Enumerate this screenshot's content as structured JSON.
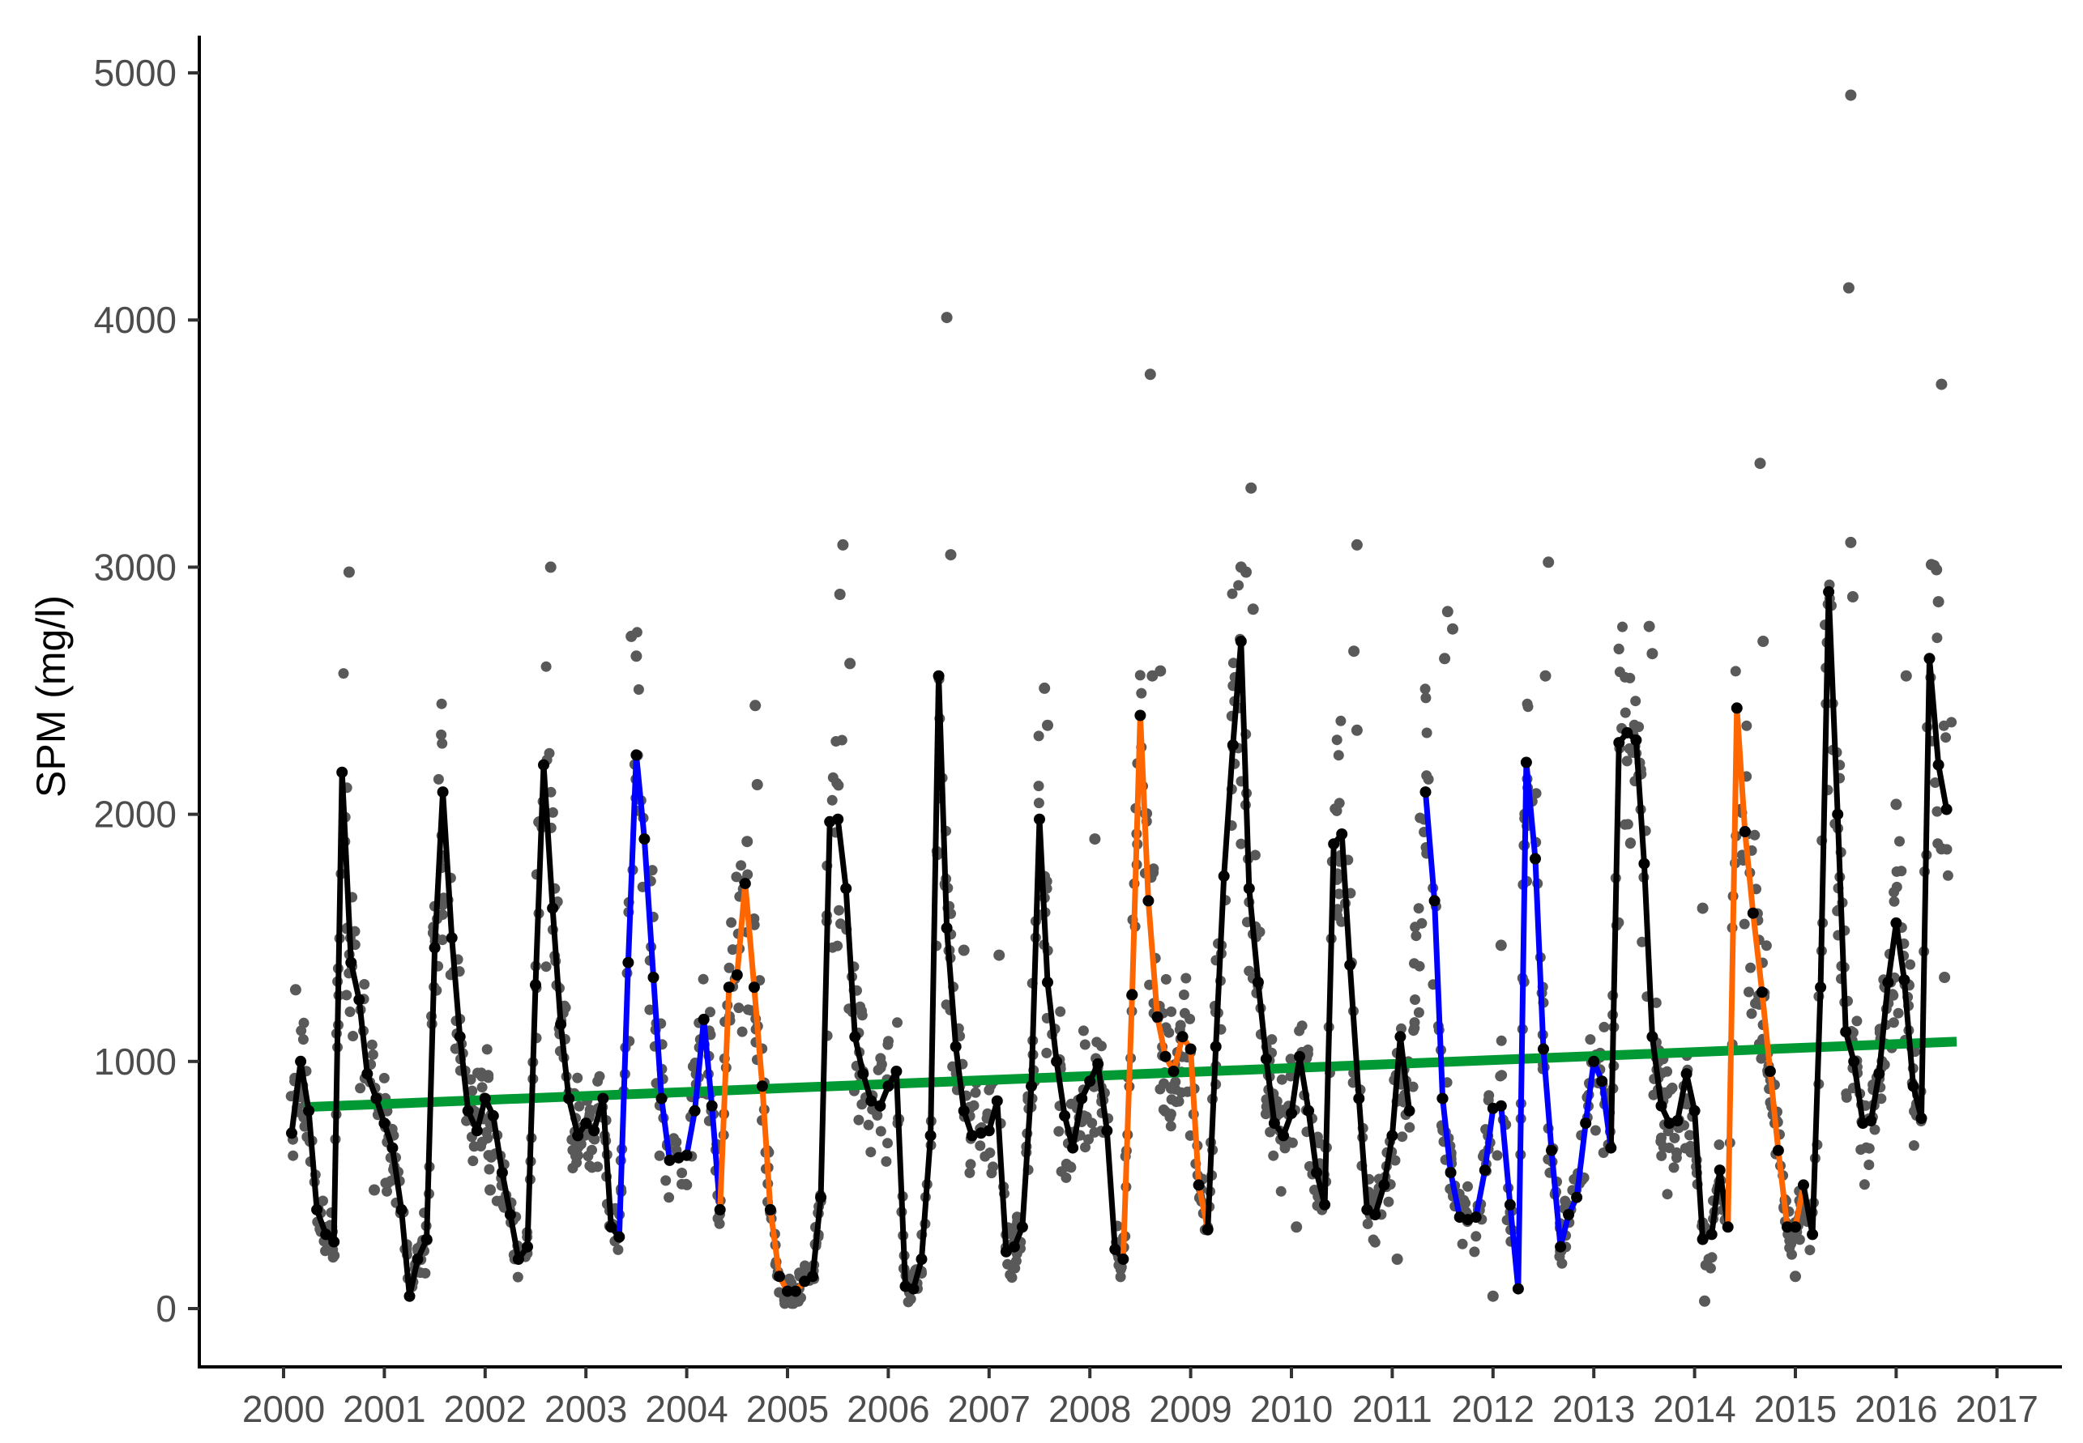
{
  "chart_data": {
    "type": "line",
    "title": "",
    "xlabel": "",
    "ylabel": "SPM (mg/l)",
    "x_ticks": [
      "2000",
      "2001",
      "2002",
      "2003",
      "2004",
      "2005",
      "2006",
      "2007",
      "2008",
      "2009",
      "2010",
      "2011",
      "2012",
      "2013",
      "2014",
      "2015",
      "2016",
      "2017"
    ],
    "y_ticks": [
      "0",
      "1000",
      "2000",
      "3000",
      "4000",
      "5000"
    ],
    "xlim": [
      1999.85,
      2017.5
    ],
    "ylim": [
      -230,
      5150
    ],
    "grid": false,
    "legend": "none",
    "colors": {
      "scatter": "#595959",
      "normal": "#000000",
      "low": "#0000ff",
      "high": "#ff6600",
      "trend": "#009933"
    },
    "monthly_series": [
      [
        2000.08,
        710
      ],
      [
        2000.17,
        1000
      ],
      [
        2000.25,
        800
      ],
      [
        2000.33,
        400
      ],
      [
        2000.42,
        300
      ],
      [
        2000.5,
        270
      ],
      [
        2000.58,
        2170
      ],
      [
        2000.67,
        1400
      ],
      [
        2000.75,
        1250
      ],
      [
        2000.83,
        950
      ],
      [
        2000.92,
        850
      ],
      [
        2001.0,
        750
      ],
      [
        2001.08,
        650
      ],
      [
        2001.17,
        400
      ],
      [
        2001.25,
        50
      ],
      [
        2001.33,
        200
      ],
      [
        2001.42,
        280
      ],
      [
        2001.5,
        1460
      ],
      [
        2001.58,
        2090
      ],
      [
        2001.67,
        1500
      ],
      [
        2001.75,
        1100
      ],
      [
        2001.83,
        800
      ],
      [
        2001.92,
        720
      ],
      [
        2002.0,
        850
      ],
      [
        2002.08,
        780
      ],
      [
        2002.17,
        550
      ],
      [
        2002.25,
        380
      ],
      [
        2002.33,
        200
      ],
      [
        2002.42,
        250
      ],
      [
        2002.5,
        1310
      ],
      [
        2002.58,
        2200
      ],
      [
        2002.67,
        1620
      ],
      [
        2002.75,
        1150
      ],
      [
        2002.83,
        850
      ],
      [
        2002.92,
        700
      ],
      [
        2003.0,
        750
      ],
      [
        2003.08,
        720
      ],
      [
        2003.17,
        850
      ],
      [
        2003.25,
        330
      ],
      [
        2003.33,
        290
      ],
      [
        2003.42,
        1400
      ],
      [
        2003.5,
        2240
      ],
      [
        2003.58,
        1900
      ],
      [
        2003.67,
        1340
      ],
      [
        2003.75,
        850
      ],
      [
        2003.83,
        600
      ],
      [
        2003.92,
        610
      ],
      [
        2004.0,
        620
      ],
      [
        2004.08,
        800
      ],
      [
        2004.17,
        1170
      ],
      [
        2004.25,
        820
      ],
      [
        2004.33,
        400
      ],
      [
        2004.42,
        1300
      ],
      [
        2004.5,
        1350
      ],
      [
        2004.58,
        1720
      ],
      [
        2004.67,
        1300
      ],
      [
        2004.75,
        900
      ],
      [
        2004.83,
        400
      ],
      [
        2004.92,
        130
      ],
      [
        2005.0,
        70
      ],
      [
        2005.08,
        70
      ],
      [
        2005.17,
        110
      ],
      [
        2005.25,
        130
      ],
      [
        2005.33,
        450
      ],
      [
        2005.42,
        1970
      ],
      [
        2005.5,
        1980
      ],
      [
        2005.58,
        1700
      ],
      [
        2005.67,
        1100
      ],
      [
        2005.75,
        950
      ],
      [
        2005.83,
        840
      ],
      [
        2005.92,
        820
      ],
      [
        2006.0,
        900
      ],
      [
        2006.08,
        960
      ],
      [
        2006.17,
        90
      ],
      [
        2006.25,
        80
      ],
      [
        2006.33,
        200
      ],
      [
        2006.42,
        700
      ],
      [
        2006.5,
        2560
      ],
      [
        2006.58,
        1540
      ],
      [
        2006.67,
        1060
      ],
      [
        2006.75,
        800
      ],
      [
        2006.83,
        700
      ],
      [
        2006.92,
        710
      ],
      [
        2007.0,
        720
      ],
      [
        2007.08,
        840
      ],
      [
        2007.17,
        230
      ],
      [
        2007.25,
        250
      ],
      [
        2007.33,
        330
      ],
      [
        2007.42,
        900
      ],
      [
        2007.5,
        1980
      ],
      [
        2007.58,
        1320
      ],
      [
        2007.67,
        1000
      ],
      [
        2007.75,
        780
      ],
      [
        2007.83,
        650
      ],
      [
        2007.92,
        850
      ],
      [
        2008.0,
        920
      ],
      [
        2008.08,
        990
      ],
      [
        2008.17,
        720
      ],
      [
        2008.25,
        240
      ],
      [
        2008.33,
        200
      ],
      [
        2008.42,
        1270
      ],
      [
        2008.5,
        2400
      ],
      [
        2008.58,
        1650
      ],
      [
        2008.67,
        1180
      ],
      [
        2008.75,
        1020
      ],
      [
        2008.83,
        960
      ],
      [
        2008.92,
        1100
      ],
      [
        2009.0,
        1050
      ],
      [
        2009.08,
        500
      ],
      [
        2009.17,
        320
      ],
      [
        2009.25,
        1060
      ],
      [
        2009.33,
        1750
      ],
      [
        2009.42,
        2280
      ],
      [
        2009.5,
        2700
      ],
      [
        2009.58,
        1700
      ],
      [
        2009.67,
        1320
      ],
      [
        2009.75,
        1010
      ],
      [
        2009.83,
        750
      ],
      [
        2009.92,
        700
      ],
      [
        2010.0,
        790
      ],
      [
        2010.08,
        1020
      ],
      [
        2010.17,
        800
      ],
      [
        2010.25,
        550
      ],
      [
        2010.33,
        420
      ],
      [
        2010.42,
        1880
      ],
      [
        2010.5,
        1920
      ],
      [
        2010.58,
        1390
      ],
      [
        2010.67,
        850
      ],
      [
        2010.75,
        400
      ],
      [
        2010.83,
        380
      ],
      [
        2010.92,
        500
      ],
      [
        2011.0,
        700
      ],
      [
        2011.08,
        1100
      ],
      [
        2011.17,
        800
      ],
      [
        2011.33,
        2090
      ],
      [
        2011.42,
        1650
      ],
      [
        2011.5,
        850
      ],
      [
        2011.58,
        550
      ],
      [
        2011.67,
        370
      ],
      [
        2011.75,
        360
      ],
      [
        2011.83,
        370
      ],
      [
        2011.92,
        560
      ],
      [
        2012.0,
        810
      ],
      [
        2012.08,
        820
      ],
      [
        2012.17,
        420
      ],
      [
        2012.25,
        80
      ],
      [
        2012.33,
        2210
      ],
      [
        2012.42,
        1820
      ],
      [
        2012.5,
        1050
      ],
      [
        2012.58,
        640
      ],
      [
        2012.67,
        250
      ],
      [
        2012.75,
        380
      ],
      [
        2012.83,
        450
      ],
      [
        2012.92,
        750
      ],
      [
        2013.0,
        1000
      ],
      [
        2013.08,
        920
      ],
      [
        2013.17,
        650
      ],
      [
        2013.25,
        2290
      ],
      [
        2013.33,
        2330
      ],
      [
        2013.42,
        2300
      ],
      [
        2013.5,
        1800
      ],
      [
        2013.58,
        1100
      ],
      [
        2013.67,
        820
      ],
      [
        2013.75,
        750
      ],
      [
        2013.83,
        760
      ],
      [
        2013.92,
        950
      ],
      [
        2014.0,
        800
      ],
      [
        2014.08,
        280
      ],
      [
        2014.17,
        300
      ],
      [
        2014.25,
        560
      ],
      [
        2014.33,
        330
      ],
      [
        2014.42,
        2430
      ],
      [
        2014.5,
        1930
      ],
      [
        2014.58,
        1600
      ],
      [
        2014.67,
        1280
      ],
      [
        2014.75,
        960
      ],
      [
        2014.83,
        640
      ],
      [
        2014.92,
        330
      ],
      [
        2015.0,
        330
      ],
      [
        2015.08,
        500
      ],
      [
        2015.17,
        300
      ],
      [
        2015.25,
        1300
      ],
      [
        2015.33,
        2900
      ],
      [
        2015.42,
        2000
      ],
      [
        2015.5,
        1120
      ],
      [
        2015.58,
        1000
      ],
      [
        2015.67,
        750
      ],
      [
        2015.75,
        760
      ],
      [
        2015.83,
        950
      ],
      [
        2015.92,
        1320
      ],
      [
        2016.0,
        1560
      ],
      [
        2016.08,
        1330
      ],
      [
        2016.17,
        900
      ],
      [
        2016.25,
        770
      ],
      [
        2016.33,
        2630
      ],
      [
        2016.42,
        2200
      ],
      [
        2016.5,
        2020
      ]
    ],
    "segments": [
      {
        "type": "normal",
        "from": 2000.08,
        "to": 2003.33
      },
      {
        "type": "low",
        "from": 2003.33,
        "to": 2004.33
      },
      {
        "type": "high",
        "from": 2004.33,
        "to": 2005.25
      },
      {
        "type": "normal",
        "from": 2005.25,
        "to": 2008.33
      },
      {
        "type": "high",
        "from": 2008.33,
        "to": 2009.17
      },
      {
        "type": "normal",
        "from": 2009.17,
        "to": 2011.25
      },
      {
        "type": "low",
        "from": 2011.25,
        "to": 2013.17
      },
      {
        "type": "normal",
        "from": 2013.17,
        "to": 2014.33
      },
      {
        "type": "high",
        "from": 2014.33,
        "to": 2015.08
      },
      {
        "type": "normal",
        "from": 2015.08,
        "to": 2016.5
      }
    ],
    "trend": {
      "x": [
        2000.2,
        2016.6
      ],
      "y": [
        815,
        1080
      ]
    },
    "outliers": [
      [
        2000.12,
        1290
      ],
      [
        2000.65,
        2980
      ],
      [
        2002.65,
        3000
      ],
      [
        2003.45,
        2720
      ],
      [
        2003.5,
        2640
      ],
      [
        2004.6,
        1890
      ],
      [
        2004.68,
        2440
      ],
      [
        2004.7,
        2120
      ],
      [
        2005.55,
        3090
      ],
      [
        2005.52,
        2890
      ],
      [
        2005.62,
        2610
      ],
      [
        2006.58,
        4010
      ],
      [
        2006.62,
        3050
      ],
      [
        2007.55,
        2510
      ],
      [
        2007.58,
        2360
      ],
      [
        2008.6,
        3780
      ],
      [
        2008.62,
        2560
      ],
      [
        2008.7,
        2580
      ],
      [
        2009.6,
        3320
      ],
      [
        2009.55,
        2980
      ],
      [
        2009.62,
        2830
      ],
      [
        2010.65,
        3090
      ],
      [
        2010.62,
        2660
      ],
      [
        2010.65,
        2340
      ],
      [
        2011.55,
        2820
      ],
      [
        2011.6,
        2750
      ],
      [
        2011.52,
        2630
      ],
      [
        2012.55,
        3020
      ],
      [
        2012.52,
        2560
      ],
      [
        2013.55,
        2760
      ],
      [
        2013.58,
        2650
      ],
      [
        2014.65,
        3420
      ],
      [
        2014.68,
        2700
      ],
      [
        2015.55,
        4910
      ],
      [
        2015.53,
        4130
      ],
      [
        2015.55,
        3100
      ],
      [
        2015.57,
        2880
      ],
      [
        2016.45,
        3740
      ],
      [
        2016.35,
        3010
      ],
      [
        2016.4,
        2990
      ],
      [
        2016.42,
        2860
      ],
      [
        2000.9,
        480
      ],
      [
        2002.05,
        480
      ],
      [
        2006.75,
        1450
      ],
      [
        2007.1,
        1430
      ],
      [
        2008.05,
        1900
      ],
      [
        2009.5,
        3000
      ],
      [
        2010.05,
        330
      ],
      [
        2011.05,
        200
      ],
      [
        2012.0,
        50
      ],
      [
        2012.08,
        1470
      ],
      [
        2014.08,
        1620
      ],
      [
        2014.1,
        30
      ],
      [
        2015.0,
        130
      ],
      [
        2016.1,
        2560
      ],
      [
        2016.0,
        2040
      ],
      [
        2016.48,
        1340
      ],
      [
        2016.45,
        1860
      ]
    ]
  }
}
